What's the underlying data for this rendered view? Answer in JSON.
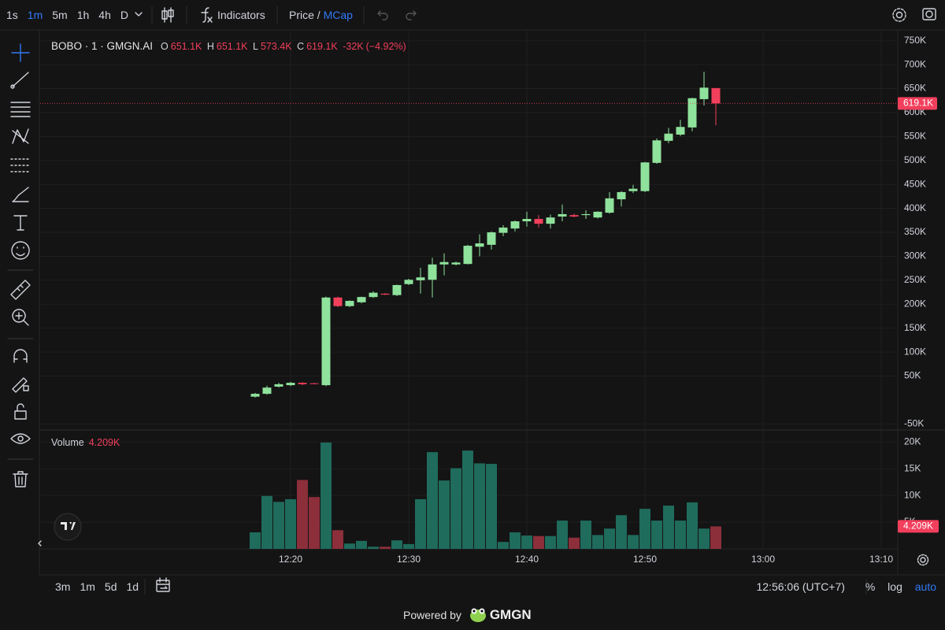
{
  "toolbar": {
    "intervals": [
      {
        "label": "1s",
        "selected": false
      },
      {
        "label": "1m",
        "selected": true
      },
      {
        "label": "5m",
        "selected": false
      },
      {
        "label": "1h",
        "selected": false
      },
      {
        "label": "4h",
        "selected": false
      },
      {
        "label": "D",
        "selected": false
      }
    ],
    "indicators": "Indicators",
    "price": "Price",
    "separator": "/",
    "mcap": "MCap"
  },
  "chart_data": [
    {
      "type": "candlestick",
      "title": "BOBO · 1 · GMGN.AI",
      "legend": {
        "o": "O",
        "open": "651.1K",
        "h": "H",
        "high": "651.1K",
        "l": "L",
        "low": "573.4K",
        "c": "C",
        "close": "619.1K",
        "change": "-32K",
        "change_pct": "(−4.92%)"
      },
      "open": [
        7000,
        13000,
        28000,
        31000,
        36000,
        35000,
        31000,
        214000,
        196000,
        204000,
        215000,
        222000,
        219000,
        242000,
        250000,
        251000,
        283000,
        283000,
        284000,
        320000,
        324000,
        349000,
        358000,
        373000,
        378000,
        368000,
        383000,
        386000,
        386000,
        381000,
        391000,
        419000,
        436000,
        436000,
        495000,
        541000,
        554000,
        569000,
        628000,
        651100
      ],
      "high": [
        15000,
        30000,
        36000,
        38000,
        37000,
        36000,
        216000,
        216000,
        208000,
        216000,
        227000,
        223000,
        241000,
        253000,
        276000,
        297000,
        306000,
        289000,
        324000,
        346000,
        352000,
        365000,
        375000,
        393000,
        386000,
        387000,
        408000,
        389000,
        396000,
        394000,
        434000,
        436000,
        449000,
        497000,
        546000,
        568000,
        585000,
        631000,
        685000,
        651100
      ],
      "low": [
        5000,
        11000,
        26000,
        29000,
        31000,
        33000,
        29000,
        194000,
        194000,
        202000,
        213000,
        219000,
        217000,
        240000,
        222000,
        214000,
        260000,
        281000,
        283000,
        300000,
        314000,
        342000,
        352000,
        362000,
        360000,
        358000,
        373000,
        381000,
        378000,
        379000,
        389000,
        404000,
        432000,
        434000,
        493000,
        536000,
        551000,
        561000,
        615000,
        573400
      ],
      "close": [
        13000,
        26000,
        33000,
        36000,
        33000,
        34000,
        214000,
        196000,
        207000,
        215000,
        224000,
        220000,
        240000,
        251000,
        256000,
        283000,
        288000,
        287000,
        322000,
        327000,
        350000,
        360000,
        373000,
        378000,
        368000,
        381000,
        388000,
        383000,
        388000,
        393000,
        421000,
        434000,
        441000,
        496000,
        542000,
        556000,
        570000,
        630000,
        652000,
        619100
      ],
      "up_color": "#8fe29c",
      "down_color": "#f23f5c",
      "ylim": [
        -62500,
        772500
      ],
      "yticks": [
        {
          "value": 750000,
          "label": "750K"
        },
        {
          "value": 700000,
          "label": "700K"
        },
        {
          "value": 650000,
          "label": "650K"
        },
        {
          "value": 600000,
          "label": "600K"
        },
        {
          "value": 550000,
          "label": "550K"
        },
        {
          "value": 500000,
          "label": "500K"
        },
        {
          "value": 450000,
          "label": "450K"
        },
        {
          "value": 400000,
          "label": "400K"
        },
        {
          "value": 350000,
          "label": "350K"
        },
        {
          "value": 300000,
          "label": "300K"
        },
        {
          "value": 250000,
          "label": "250K"
        },
        {
          "value": 200000,
          "label": "200K"
        },
        {
          "value": 150000,
          "label": "150K"
        },
        {
          "value": 100000,
          "label": "100K"
        },
        {
          "value": 50000,
          "label": "50K"
        },
        {
          "value": -50000,
          "label": "-50K"
        }
      ],
      "xticks": [
        {
          "value": 3,
          "label": "12:20"
        },
        {
          "value": 13,
          "label": "12:30"
        },
        {
          "value": 23,
          "label": "12:40"
        },
        {
          "value": 33,
          "label": "12:50"
        },
        {
          "value": 43,
          "label": "13:00"
        },
        {
          "value": 53,
          "label": "13:10"
        }
      ],
      "last_value_label": "619.1K",
      "grid": true
    },
    {
      "type": "bar",
      "title": "Volume",
      "legend_value": "4.209K",
      "values": [
        3100,
        9900,
        8800,
        9300,
        12900,
        9700,
        19900,
        3500,
        1000,
        1500,
        400,
        400,
        1600,
        900,
        9300,
        18100,
        12800,
        15100,
        18400,
        16000,
        15900,
        1300,
        3100,
        2500,
        2400,
        2400,
        5300,
        2100,
        5300,
        2600,
        3800,
        6300,
        2600,
        7500,
        5300,
        8100,
        5300,
        8700,
        3800,
        4209
      ],
      "up_color": "#1f6b5c",
      "down_color": "#8c2f3b",
      "ylim": [
        0,
        22100
      ],
      "yticks": [
        {
          "value": 20000,
          "label": "20K"
        },
        {
          "value": 15000,
          "label": "15K"
        },
        {
          "value": 10000,
          "label": "10K"
        },
        {
          "value": 5000,
          "label": "5K"
        }
      ],
      "last_value_label": "4.209K",
      "grid": true
    }
  ],
  "bottom_bar": {
    "ranges": [
      "3m",
      "1m",
      "5d",
      "1d"
    ],
    "clock": "12:56:06 (UTC+7)",
    "percent": "%",
    "log": "log",
    "auto": "auto"
  },
  "footer": {
    "powered_by": "Powered by",
    "brand": "GMGN"
  }
}
